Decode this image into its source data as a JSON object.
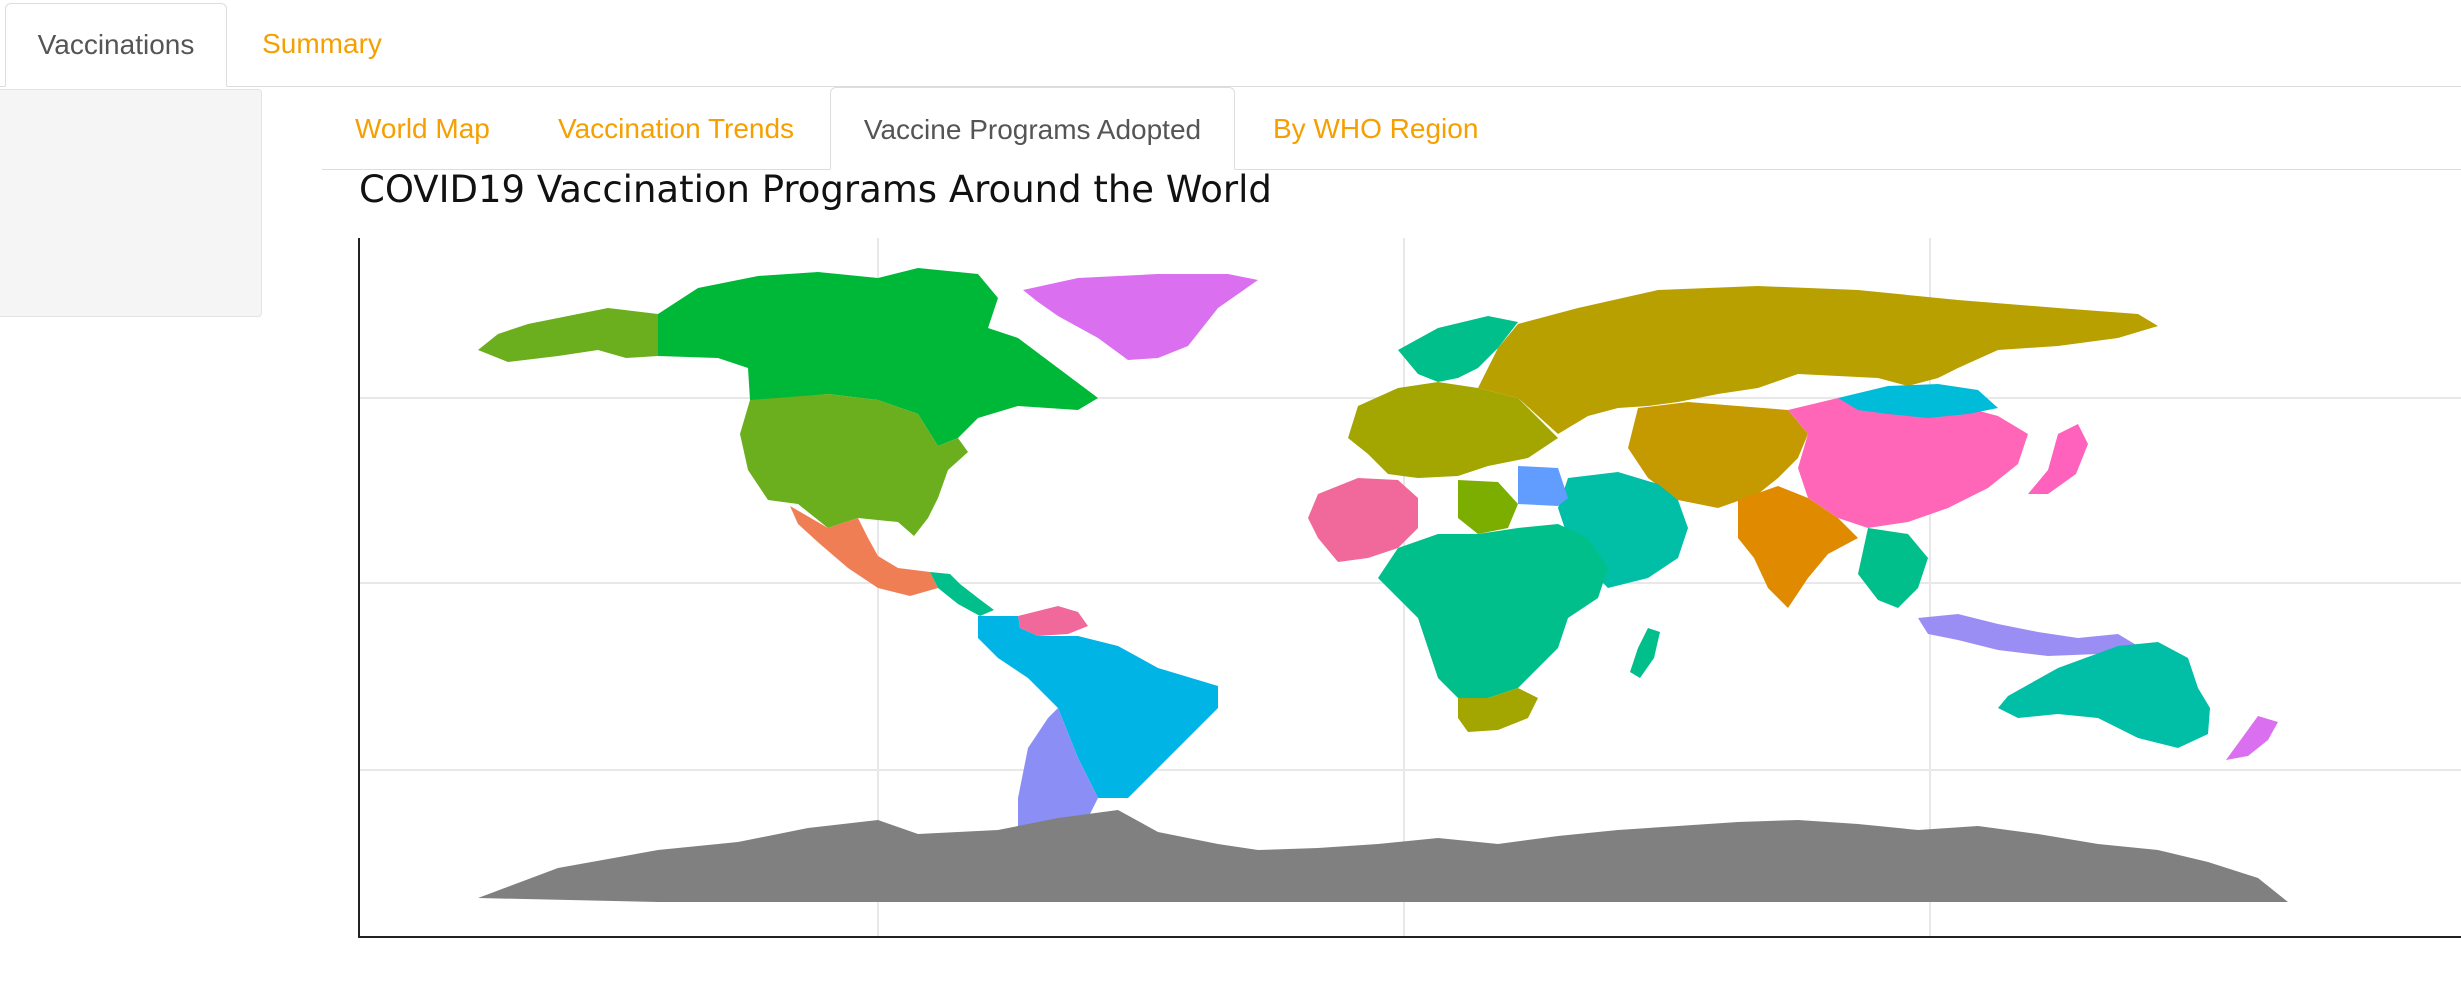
{
  "main_tabs": [
    {
      "label": "Vaccinations",
      "active": true
    },
    {
      "label": "Summary",
      "active": false
    }
  ],
  "sub_tabs": [
    {
      "label": "World Map",
      "active": false
    },
    {
      "label": "Vaccination Trends",
      "active": false
    },
    {
      "label": "Vaccine Programs Adopted",
      "active": true
    },
    {
      "label": "By WHO Region",
      "active": false
    }
  ],
  "colors": {
    "accent": "#F5A000",
    "missing_data": "#808080",
    "grid": "#e8e8e8"
  },
  "chart_data": {
    "type": "map",
    "title": "COVID19 Vaccination Programs Around the World",
    "fill_variable": "vaccine program (legend not visible)",
    "grid": true,
    "legend": "none visible",
    "regions": [
      {
        "name": "Alaska",
        "color": "#6BAE1E"
      },
      {
        "name": "Canada",
        "color": "#00B838"
      },
      {
        "name": "United States",
        "color": "#6BAE1E"
      },
      {
        "name": "Greenland",
        "color": "#DA6FF0"
      },
      {
        "name": "Mexico",
        "color": "#F07E55"
      },
      {
        "name": "Central America",
        "color": "#00BF8A"
      },
      {
        "name": "Venezuela",
        "color": "#F0699A"
      },
      {
        "name": "South America",
        "color": "#00B4E6"
      },
      {
        "name": "Argentina",
        "color": "#8B8FF5"
      },
      {
        "name": "Western Europe",
        "color": "#A3A500"
      },
      {
        "name": "Scandinavia",
        "color": "#00BF8A"
      },
      {
        "name": "Russia",
        "color": "#B8A000"
      },
      {
        "name": "Middle East",
        "color": "#00BFA6"
      },
      {
        "name": "Central Asia",
        "color": "#C59A00"
      },
      {
        "name": "China",
        "color": "#FF66B8"
      },
      {
        "name": "Mongolia",
        "color": "#00BCD8"
      },
      {
        "name": "India",
        "color": "#E08A00"
      },
      {
        "name": "Southeast Asia",
        "color": "#00BF8A"
      },
      {
        "name": "Japan",
        "color": "#FF62BC"
      },
      {
        "name": "Indonesia",
        "color": "#9A8EF5"
      },
      {
        "name": "Australia",
        "color": "#00BFA6"
      },
      {
        "name": "New Zealand",
        "color": "#DA6FF0"
      },
      {
        "name": "West Africa",
        "color": "#F0699A"
      },
      {
        "name": "Libya",
        "color": "#7CAE00"
      },
      {
        "name": "Egypt",
        "color": "#619CFF"
      },
      {
        "name": "Central Africa",
        "color": "#00BF8A"
      },
      {
        "name": "Southern Africa",
        "color": "#A3A500"
      },
      {
        "name": "Madagascar",
        "color": "#00BF8A"
      },
      {
        "name": "Antarctica",
        "color": "#808080"
      }
    ]
  }
}
